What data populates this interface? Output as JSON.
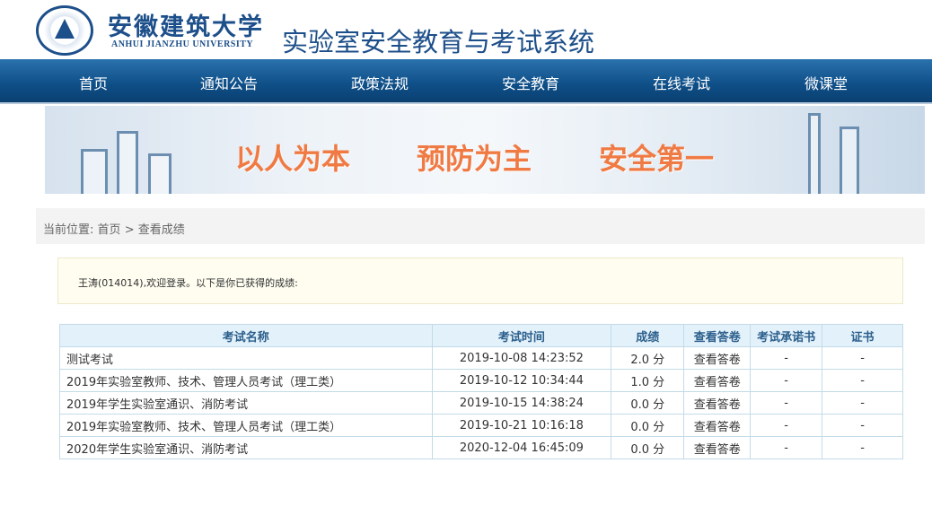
{
  "header": {
    "university_cn": "安徽建筑大学",
    "university_en": "ANHUI JIANZHU UNIVERSITY",
    "system_title": "实验室安全教育与考试系统",
    "brand_color": "#1d4f8a"
  },
  "nav": {
    "items": [
      "首页",
      "通知公告",
      "政策法规",
      "安全教育",
      "在线考试",
      "微课堂"
    ]
  },
  "banner": {
    "slogans": [
      "以人为本",
      "预防为主",
      "安全第一"
    ]
  },
  "breadcrumb": {
    "prefix": "当前位置:",
    "home": "首页",
    "sep": ">",
    "current": "查看成绩"
  },
  "notice": {
    "text": "王涛(014014),欢迎登录。以下是你已获得的成绩:"
  },
  "table": {
    "headers": [
      "考试名称",
      "考试时间",
      "成绩",
      "查看答卷",
      "考试承诺书",
      "证书"
    ],
    "rows": [
      [
        "测试考试",
        "2019-10-08 14:23:52",
        "2.0 分",
        "查看答卷",
        "-",
        "-"
      ],
      [
        "2019年实验室教师、技术、管理人员考试（理工类）",
        "2019-10-12 10:34:44",
        "1.0 分",
        "查看答卷",
        "-",
        "-"
      ],
      [
        "2019年学生实验室通识、消防考试",
        "2019-10-15 14:38:24",
        "0.0 分",
        "查看答卷",
        "-",
        "-"
      ],
      [
        "2019年实验室教师、技术、管理人员考试（理工类）",
        "2019-10-21 10:16:18",
        "0.0 分",
        "查看答卷",
        "-",
        "-"
      ],
      [
        "2020年学生实验室通识、消防考试",
        "2020-12-04 16:45:09",
        "0.0 分",
        "查看答卷",
        "-",
        "-"
      ]
    ]
  }
}
